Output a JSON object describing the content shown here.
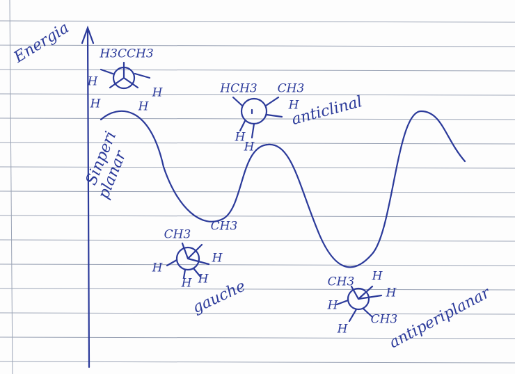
{
  "axis_label": "Energia",
  "conformations": [
    {
      "name": [
        "Sinperi",
        "planar"
      ],
      "substituents": [
        "H3CCH3",
        "H",
        "H",
        "H",
        "H"
      ]
    },
    {
      "name": [
        "anticlinal"
      ],
      "substituents": [
        "HCH3",
        "CH3",
        "H",
        "H",
        "H"
      ]
    },
    {
      "name": [
        "gauche"
      ],
      "substituents": [
        "CH3",
        "CH3",
        "H",
        "H",
        "H",
        "H"
      ]
    },
    {
      "name": [
        "antiperiplanar"
      ],
      "substituents": [
        "CH3",
        "H",
        "H",
        "H",
        "CH3",
        "H"
      ]
    }
  ]
}
